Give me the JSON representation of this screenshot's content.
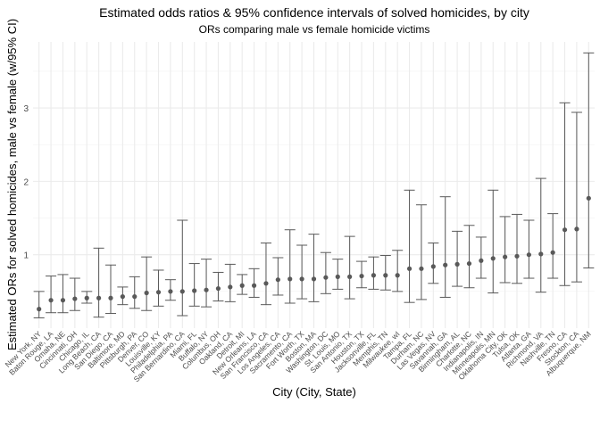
{
  "chart_data": {
    "type": "errorbar",
    "title": "Estimated odds ratios & 95% confidence intervals of solved homicides, by city",
    "subtitle": "ORs comparing male vs female homicide victims",
    "xlabel": "City (City, State)",
    "ylabel": "Estimated ORs for solved homicides, male vs female (w/95% CI)",
    "ylim": [
      0,
      3.9
    ],
    "yticks": [
      1,
      2,
      3
    ],
    "grid": true,
    "legend": "none",
    "colors": {
      "point": "#595959",
      "errorbar": "#595959",
      "grid": "#ebebeb"
    },
    "categories": [
      "New York, NY",
      "Baton Rouge, LA",
      "Omaha, NE",
      "Cincinnati, OH",
      "Chicago, IL",
      "Long Beach, CA",
      "San Diego, CA",
      "Baltimore, MD",
      "Pittsburgh, PA",
      "Denver, CO",
      "Louisville, KY",
      "Philadelphia, PA",
      "San Bernardino, CA",
      "Miami, FL",
      "Buffalo, NY",
      "Columbus, OH",
      "Oakland, CA",
      "Detroit, MI",
      "New Orleans, LA",
      "San Francisco, CA",
      "Los Angeles, CA",
      "Sacramento, CA",
      "Fort Worth, TX",
      "Boston, MA",
      "Washington, DC",
      "St. Louis, MO",
      "San Antonio, TX",
      "Houston, TX",
      "Jacksonville, FL",
      "Memphis, TN",
      "Milwaukee, wI",
      "Tampa, FL",
      "Durham, NC",
      "Las Vegas, NV",
      "Savannah, GA",
      "Birmingham, AL",
      "Charlotte, NC",
      "Indianapolis, IN",
      "Minneapolis, MN",
      "Oklahoma City, OK",
      "Tulsa, OK",
      "Atlanta, GA",
      "Richmond, VA",
      "Nashville, TN",
      "Fresno, CA",
      "Stockton, CA",
      "Albuquerque, NM"
    ],
    "or": [
      0.26,
      0.38,
      0.38,
      0.4,
      0.41,
      0.41,
      0.41,
      0.43,
      0.43,
      0.48,
      0.49,
      0.5,
      0.5,
      0.51,
      0.52,
      0.54,
      0.56,
      0.58,
      0.58,
      0.61,
      0.66,
      0.67,
      0.67,
      0.67,
      0.69,
      0.7,
      0.7,
      0.71,
      0.72,
      0.72,
      0.72,
      0.81,
      0.81,
      0.84,
      0.86,
      0.87,
      0.88,
      0.92,
      0.95,
      0.97,
      0.98,
      1.0,
      1.01,
      1.03,
      1.34,
      1.35,
      1.77
    ],
    "lower": [
      0.14,
      0.21,
      0.21,
      0.24,
      0.34,
      0.15,
      0.2,
      0.32,
      0.27,
      0.24,
      0.3,
      0.38,
      0.17,
      0.3,
      0.29,
      0.37,
      0.36,
      0.46,
      0.42,
      0.32,
      0.45,
      0.34,
      0.4,
      0.36,
      0.47,
      0.53,
      0.4,
      0.55,
      0.53,
      0.52,
      0.5,
      0.35,
      0.39,
      0.61,
      0.42,
      0.57,
      0.55,
      0.68,
      0.48,
      0.62,
      0.61,
      0.68,
      0.49,
      0.68,
      0.58,
      0.63,
      0.82
    ],
    "upper": [
      0.5,
      0.71,
      0.73,
      0.68,
      0.5,
      1.09,
      0.86,
      0.56,
      0.7,
      0.97,
      0.79,
      0.66,
      1.47,
      0.88,
      0.94,
      0.76,
      0.87,
      0.73,
      0.81,
      1.16,
      0.96,
      1.34,
      1.13,
      1.28,
      1.03,
      0.94,
      1.25,
      0.91,
      0.97,
      0.99,
      1.06,
      1.88,
      1.68,
      1.16,
      1.79,
      1.32,
      1.4,
      1.24,
      1.88,
      1.52,
      1.55,
      1.47,
      2.04,
      1.56,
      3.07,
      2.94,
      3.75
    ]
  }
}
